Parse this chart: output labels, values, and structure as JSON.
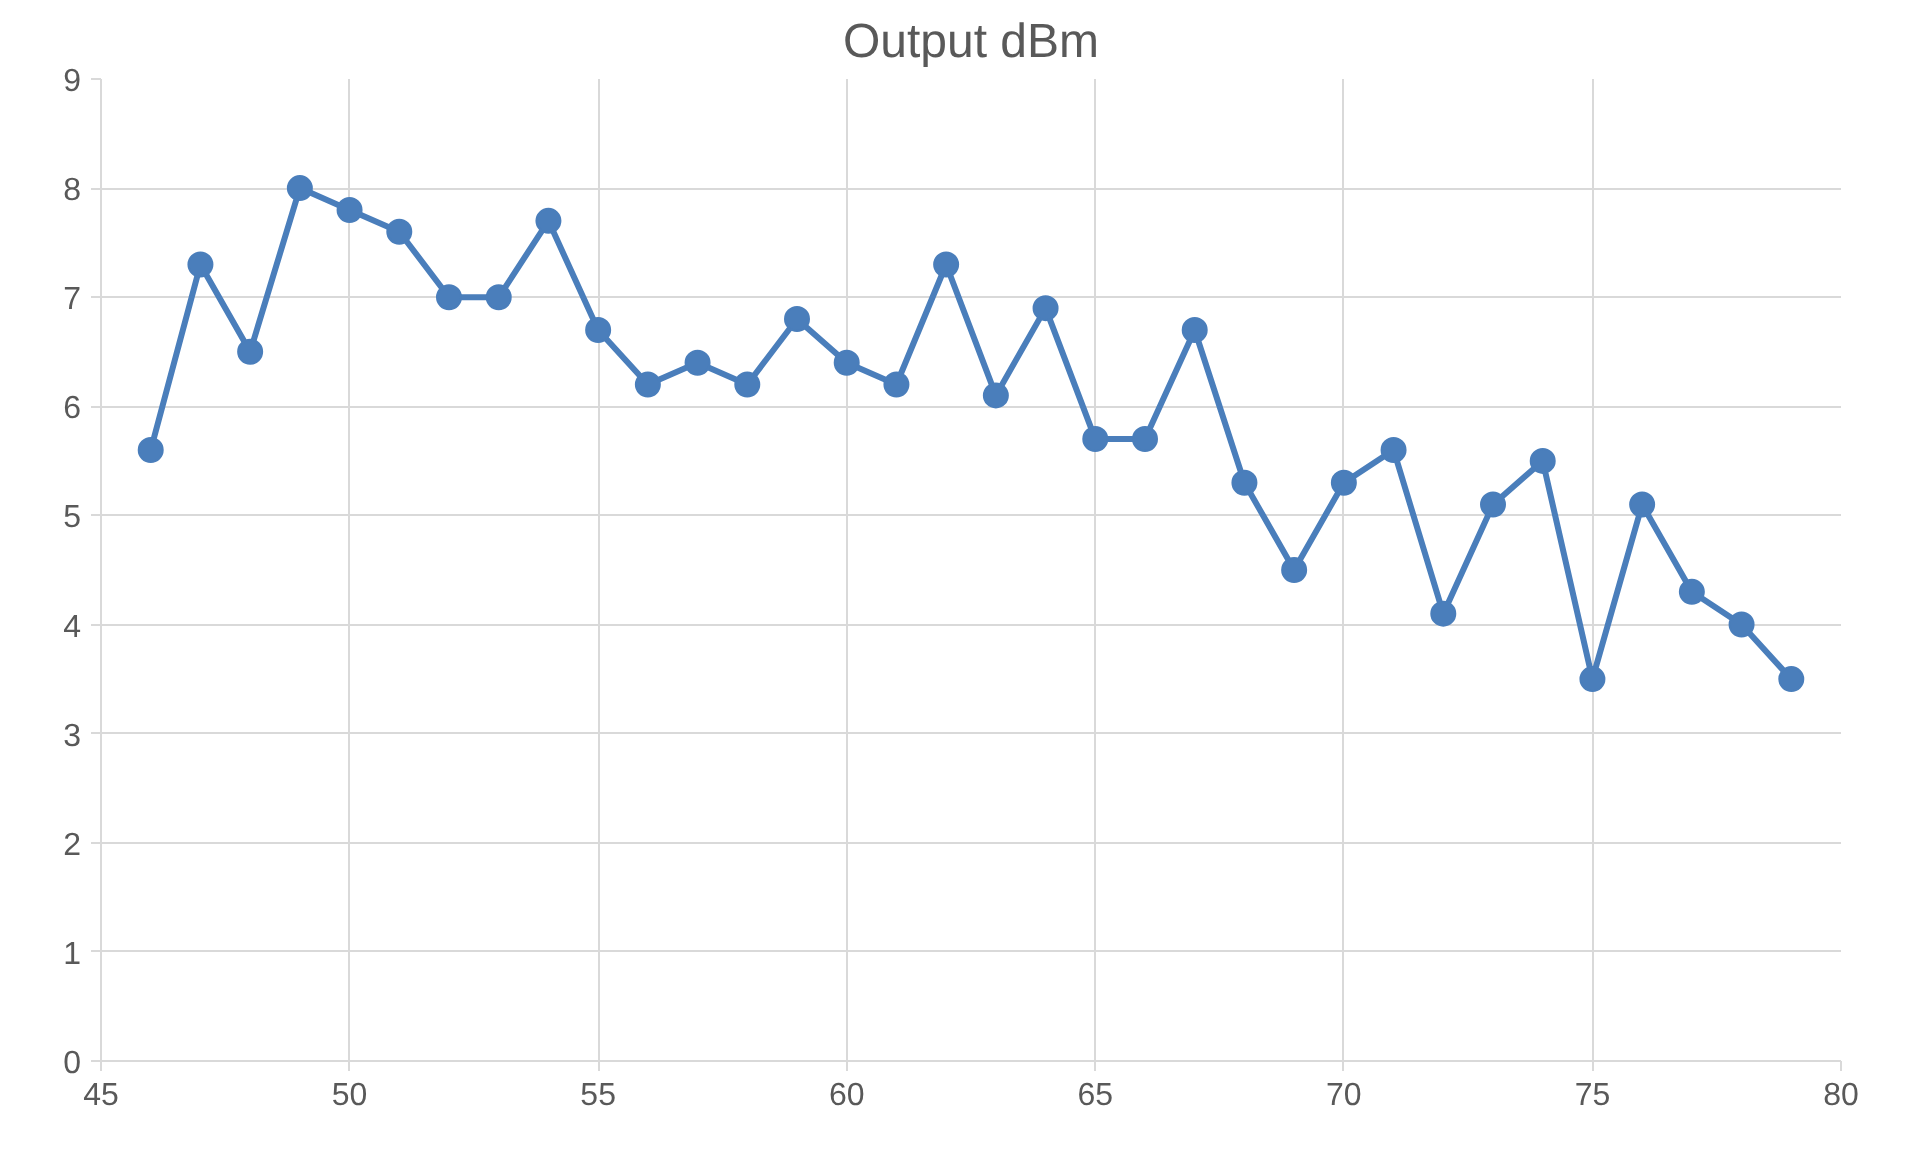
{
  "chart_data": {
    "type": "line",
    "title": "Output dBm",
    "x": [
      46,
      47,
      48,
      49,
      50,
      51,
      52,
      53,
      54,
      55,
      56,
      57,
      58,
      59,
      60,
      61,
      62,
      63,
      64,
      65,
      66,
      67,
      68,
      69,
      70,
      71,
      72,
      73,
      74,
      75,
      76,
      77,
      78,
      79
    ],
    "series": [
      {
        "color": "#4a7ebb",
        "values": [
          5.6,
          7.3,
          6.5,
          8.0,
          7.8,
          7.6,
          7.0,
          7.0,
          7.7,
          6.7,
          6.2,
          6.4,
          6.2,
          6.8,
          6.4,
          6.2,
          7.3,
          6.1,
          6.9,
          5.7,
          5.7,
          6.7,
          5.3,
          4.5,
          5.3,
          5.6,
          4.1,
          5.1,
          5.5,
          3.5,
          5.1,
          4.3,
          4.0,
          3.5
        ]
      }
    ],
    "xlim": [
      45,
      80
    ],
    "xticks": [
      45,
      50,
      55,
      60,
      65,
      70,
      75,
      80
    ],
    "ylim": [
      0,
      9
    ],
    "yticks": [
      0,
      1,
      2,
      3,
      4,
      5,
      6,
      7,
      8,
      9
    ],
    "grid": true,
    "marker": "circle",
    "line_style": "solid"
  }
}
